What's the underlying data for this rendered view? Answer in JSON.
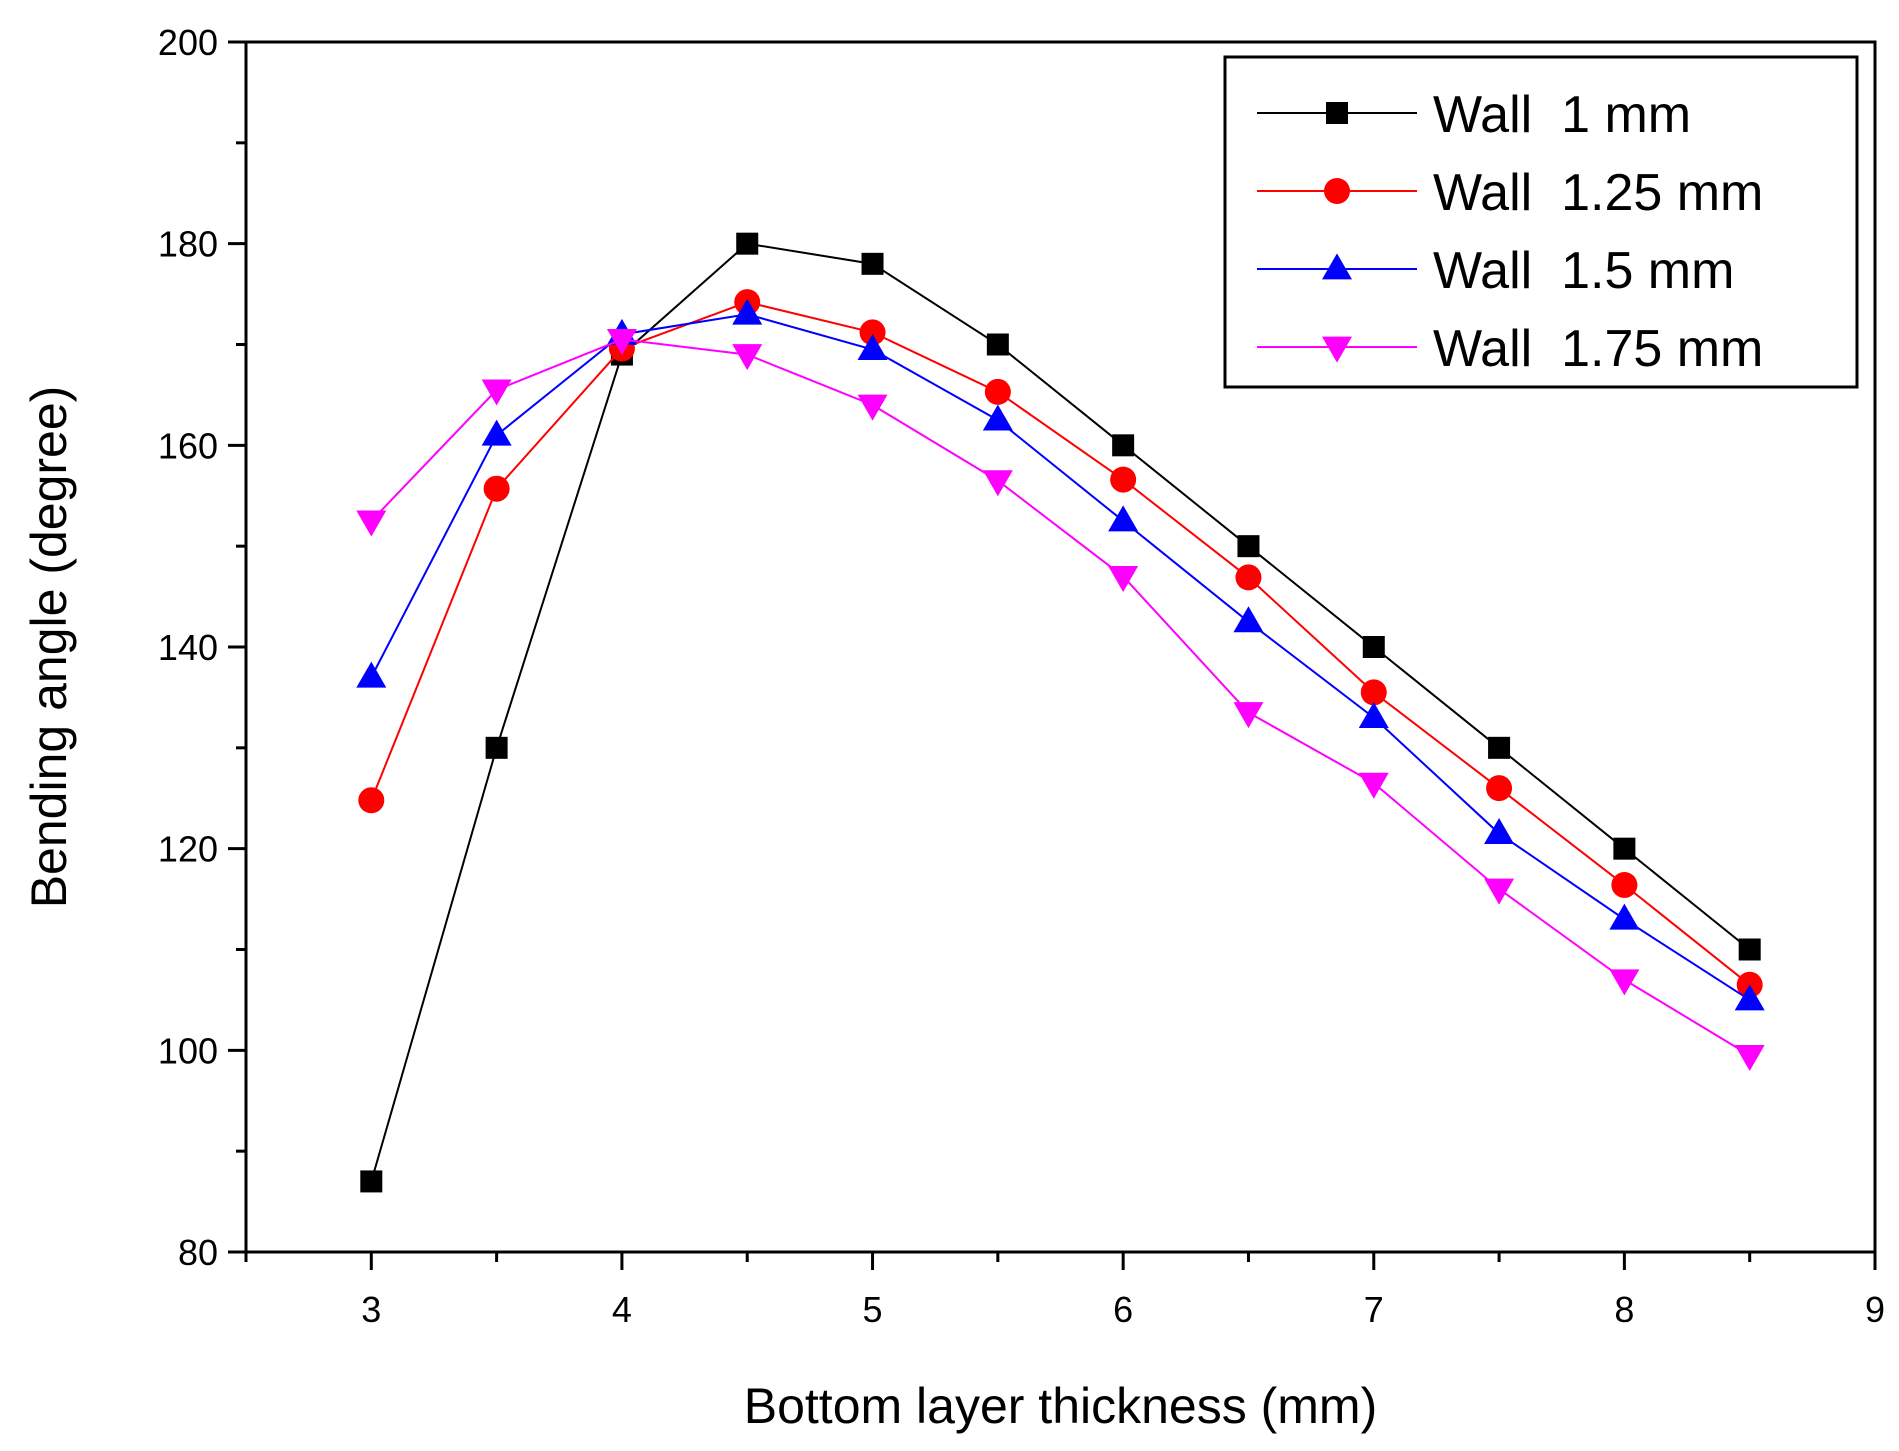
{
  "chart_data": {
    "type": "line",
    "title": "",
    "xlabel": "Bottom layer thickness (mm)",
    "ylabel": "Bending angle (degree)",
    "xlim": [
      2.5,
      9
    ],
    "ylim": [
      80,
      200
    ],
    "xticks": [
      3,
      4,
      5,
      6,
      7,
      8,
      9
    ],
    "yticks": [
      80,
      100,
      120,
      140,
      160,
      180,
      200
    ],
    "grid": false,
    "legend_position": "top-right",
    "x": [
      3,
      3.5,
      4,
      4.5,
      5,
      5.5,
      6,
      6.5,
      7,
      7.5,
      8,
      8.5
    ],
    "series": [
      {
        "name": "Wall  1 mm",
        "color": "#000000",
        "marker": "square",
        "values": [
          87,
          130,
          169,
          180,
          178,
          170,
          160,
          150,
          140,
          130,
          120,
          110
        ]
      },
      {
        "name": "Wall  1.25 mm",
        "color": "#ff0000",
        "marker": "circle",
        "values": [
          124.8,
          155.7,
          169.6,
          174.2,
          171.2,
          165.3,
          156.6,
          146.9,
          135.5,
          126,
          116.4,
          106.5
        ]
      },
      {
        "name": "Wall  1.5 mm",
        "color": "#0000ff",
        "marker": "triangle-up",
        "values": [
          137,
          161,
          171,
          173,
          169.5,
          162.5,
          152.5,
          142.5,
          133,
          121.5,
          113,
          105
        ]
      },
      {
        "name": "Wall  1.75 mm",
        "color": "#ff00ff",
        "marker": "triangle-down",
        "values": [
          152.5,
          165.5,
          170.5,
          169,
          164,
          156.5,
          147,
          133.5,
          126.5,
          116,
          107,
          99.5
        ]
      }
    ]
  }
}
